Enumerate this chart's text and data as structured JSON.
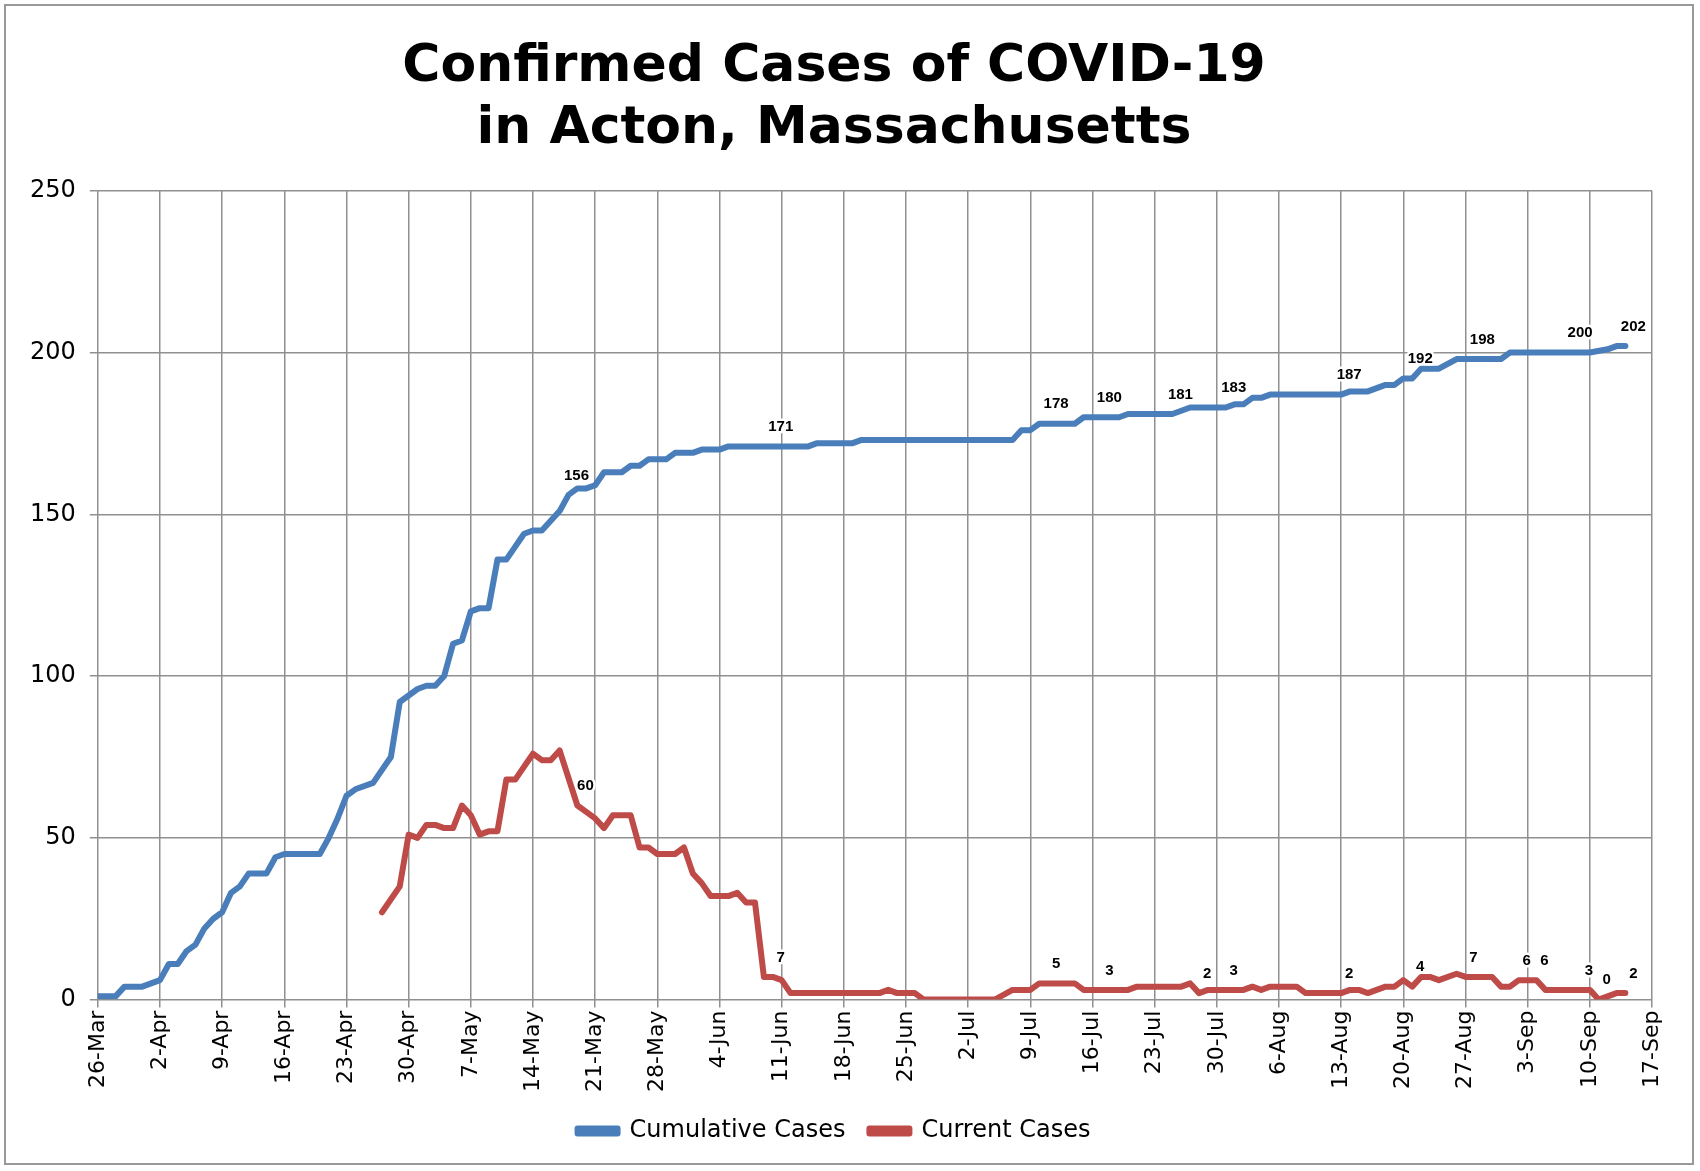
{
  "chart_data": {
    "type": "line",
    "title": "Confirmed Cases of COVID-19\nin Acton, Massachusetts",
    "xlim": [
      "--03-26",
      "--09-17"
    ],
    "xticks": [
      {
        "value": "--03-26",
        "label": "26-Mar"
      },
      {
        "value": "--04-02",
        "label": "2-Apr"
      },
      {
        "value": "--04-09",
        "label": "9-Apr"
      },
      {
        "value": "--04-16",
        "label": "16-Apr"
      },
      {
        "value": "--04-23",
        "label": "23-Apr"
      },
      {
        "value": "--04-30",
        "label": "30-Apr"
      },
      {
        "value": "--05-07",
        "label": "7-May"
      },
      {
        "value": "--05-14",
        "label": "14-May"
      },
      {
        "value": "--05-21",
        "label": "21-May"
      },
      {
        "value": "--05-28",
        "label": "28-May"
      },
      {
        "value": "--06-04",
        "label": "4-Jun"
      },
      {
        "value": "--06-11",
        "label": "11-Jun"
      },
      {
        "value": "--06-18",
        "label": "18-Jun"
      },
      {
        "value": "--06-25",
        "label": "25-Jun"
      },
      {
        "value": "--07-02",
        "label": "2-Jul"
      },
      {
        "value": "--07-09",
        "label": "9-Jul"
      },
      {
        "value": "--07-16",
        "label": "16-Jul"
      },
      {
        "value": "--07-23",
        "label": "23-Jul"
      },
      {
        "value": "--07-30",
        "label": "30-Jul"
      },
      {
        "value": "--08-06",
        "label": "6-Aug"
      },
      {
        "value": "--08-13",
        "label": "13-Aug"
      },
      {
        "value": "--08-20",
        "label": "20-Aug"
      },
      {
        "value": "--08-27",
        "label": "27-Aug"
      },
      {
        "value": "--09-03",
        "label": "3-Sep"
      },
      {
        "value": "--09-10",
        "label": "10-Sep"
      },
      {
        "value": "--09-17",
        "label": "17-Sep"
      }
    ],
    "ylim": [
      0,
      250
    ],
    "yticks": [
      0,
      50,
      100,
      150,
      200,
      250
    ],
    "grid": true,
    "legend": "bottom",
    "marker": "none",
    "line_style": "solid",
    "series": [
      {
        "name": "Cumulative Cases",
        "color": "#4a7ebb",
        "x": [
          "--03-26",
          "--03-28",
          "--03-29",
          "--03-31",
          "--04-01",
          "--04-02",
          "--04-03",
          "--04-04",
          "--04-05",
          "--04-06",
          "--04-07",
          "--04-08",
          "--04-09",
          "--04-10",
          "--04-11",
          "--04-12",
          "--04-14",
          "--04-15",
          "--04-16",
          "--04-20",
          "--04-21",
          "--04-22",
          "--04-23",
          "--04-24",
          "--04-26",
          "--04-27",
          "--04-28",
          "--04-29",
          "--04-30",
          "--05-01",
          "--05-02",
          "--05-03",
          "--05-04",
          "--05-05",
          "--05-06",
          "--05-07",
          "--05-08",
          "--05-09",
          "--05-10",
          "--05-11",
          "--05-12",
          "--05-13",
          "--05-14",
          "--05-15",
          "--05-16",
          "--05-17",
          "--05-18",
          "--05-19",
          "--05-20",
          "--05-21",
          "--05-22",
          "--05-24",
          "--05-25",
          "--05-26",
          "--05-27",
          "--05-29",
          "--05-30",
          "--06-01",
          "--06-02",
          "--06-04",
          "--06-05",
          "--06-10",
          "--06-14",
          "--06-15",
          "--06-19",
          "--06-20",
          "--07-07",
          "--07-08",
          "--07-09",
          "--07-10",
          "--07-11",
          "--07-14",
          "--07-15",
          "--07-17",
          "--07-19",
          "--07-20",
          "--07-25",
          "--07-27",
          "--07-31",
          "--08-01",
          "--08-02",
          "--08-03",
          "--08-04",
          "--08-05",
          "--08-13",
          "--08-14",
          "--08-16",
          "--08-18",
          "--08-19",
          "--08-20",
          "--08-21",
          "--08-22",
          "--08-24",
          "--08-26",
          "--08-28",
          "--08-31",
          "--09-01",
          "--09-08",
          "--09-10",
          "--09-12",
          "--09-13",
          "--09-14"
        ],
        "values": [
          1,
          1,
          4,
          4,
          5,
          6,
          11,
          11,
          15,
          17,
          22,
          25,
          27,
          33,
          35,
          39,
          39,
          44,
          45,
          45,
          50,
          56,
          63,
          65,
          67,
          71,
          75,
          92,
          94,
          96,
          97,
          97,
          100,
          110,
          111,
          120,
          121,
          121,
          136,
          136,
          140,
          144,
          145,
          145,
          148,
          151,
          156,
          158,
          158,
          159,
          163,
          163,
          165,
          165,
          167,
          167,
          169,
          169,
          170,
          170,
          171,
          171,
          171,
          172,
          172,
          173,
          173,
          176,
          176,
          178,
          178,
          178,
          180,
          180,
          180,
          181,
          181,
          183,
          183,
          184,
          184,
          186,
          186,
          187,
          187,
          188,
          188,
          190,
          190,
          192,
          192,
          195,
          195,
          198,
          198,
          198,
          200,
          200,
          200,
          201,
          202,
          202
        ],
        "value_labels": [
          null,
          null,
          null,
          null,
          null,
          null,
          null,
          null,
          null,
          null,
          null,
          null,
          null,
          null,
          null,
          null,
          null,
          null,
          null,
          null,
          null,
          null,
          null,
          null,
          null,
          null,
          null,
          null,
          null,
          null,
          null,
          null,
          null,
          null,
          null,
          null,
          null,
          null,
          null,
          null,
          null,
          null,
          null,
          null,
          null,
          null,
          "156",
          null,
          null,
          null,
          null,
          null,
          null,
          null,
          null,
          null,
          null,
          null,
          null,
          null,
          null,
          "171",
          null,
          null,
          null,
          null,
          null,
          null,
          null,
          null,
          "178",
          null,
          null,
          "180",
          null,
          null,
          "181",
          null,
          "183",
          null,
          null,
          null,
          null,
          null,
          "187",
          null,
          null,
          null,
          null,
          null,
          "192",
          null,
          null,
          null,
          "198",
          null,
          null,
          "200",
          null,
          null,
          null,
          "202"
        ]
      },
      {
        "name": "Current Cases",
        "color": "#be4b48",
        "x": [
          "--04-27",
          "--04-29",
          "--04-30",
          "--05-01",
          "--05-02",
          "--05-03",
          "--05-04",
          "--05-05",
          "--05-06",
          "--05-07",
          "--05-08",
          "--05-09",
          "--05-10",
          "--05-11",
          "--05-12",
          "--05-13",
          "--05-14",
          "--05-15",
          "--05-16",
          "--05-17",
          "--05-19",
          "--05-20",
          "--05-21",
          "--05-22",
          "--05-23",
          "--05-25",
          "--05-26",
          "--05-27",
          "--05-28",
          "--05-30",
          "--05-31",
          "--06-01",
          "--06-02",
          "--06-03",
          "--06-05",
          "--06-06",
          "--06-07",
          "--06-08",
          "--06-09",
          "--06-10",
          "--06-11",
          "--06-12",
          "--06-22",
          "--06-23",
          "--06-24",
          "--06-26",
          "--06-27",
          "--07-05",
          "--07-07",
          "--07-09",
          "--07-10",
          "--07-11",
          "--07-14",
          "--07-15",
          "--07-17",
          "--07-20",
          "--07-21",
          "--07-26",
          "--07-27",
          "--07-28",
          "--07-29",
          "--07-31",
          "--08-02",
          "--08-03",
          "--08-04",
          "--08-05",
          "--08-08",
          "--08-09",
          "--08-13",
          "--08-14",
          "--08-15",
          "--08-16",
          "--08-18",
          "--08-19",
          "--08-20",
          "--08-21",
          "--08-22",
          "--08-23",
          "--08-24",
          "--08-26",
          "--08-27",
          "--08-30",
          "--08-31",
          "--09-01",
          "--09-02",
          "--09-04",
          "--09-05",
          "--09-09",
          "--09-10",
          "--09-11",
          "--09-12",
          "--09-13",
          "--09-14"
        ],
        "values": [
          27,
          35,
          51,
          50,
          54,
          54,
          53,
          53,
          60,
          57,
          51,
          52,
          52,
          68,
          68,
          72,
          76,
          74,
          74,
          77,
          60,
          58,
          56,
          53,
          57,
          57,
          47,
          47,
          45,
          45,
          47,
          39,
          36,
          32,
          32,
          33,
          30,
          30,
          7,
          7,
          6,
          2,
          2,
          3,
          2,
          2,
          0,
          0,
          3,
          3,
          5,
          5,
          5,
          3,
          3,
          3,
          4,
          4,
          5,
          2,
          3,
          3,
          3,
          4,
          3,
          4,
          4,
          2,
          2,
          3,
          3,
          2,
          4,
          4,
          6,
          4,
          7,
          7,
          6,
          8,
          7,
          7,
          4,
          4,
          6,
          6,
          3,
          3,
          3,
          0,
          1,
          2,
          2
        ],
        "value_labels": [
          null,
          null,
          null,
          null,
          null,
          null,
          null,
          null,
          null,
          null,
          null,
          null,
          null,
          null,
          null,
          null,
          null,
          null,
          null,
          null,
          "60",
          null,
          null,
          null,
          null,
          null,
          null,
          null,
          null,
          null,
          null,
          null,
          null,
          null,
          null,
          null,
          null,
          null,
          null,
          "7",
          null,
          null,
          null,
          null,
          null,
          null,
          null,
          null,
          null,
          null,
          null,
          "5",
          null,
          null,
          "3",
          null,
          null,
          null,
          null,
          "2",
          null,
          "3",
          null,
          null,
          null,
          null,
          null,
          null,
          "2",
          null,
          null,
          null,
          null,
          null,
          null,
          "4",
          null,
          null,
          null,
          null,
          "7",
          null,
          null,
          null,
          "6",
          "6",
          null,
          "3",
          null,
          "0",
          null,
          null,
          "2"
        ]
      }
    ]
  }
}
